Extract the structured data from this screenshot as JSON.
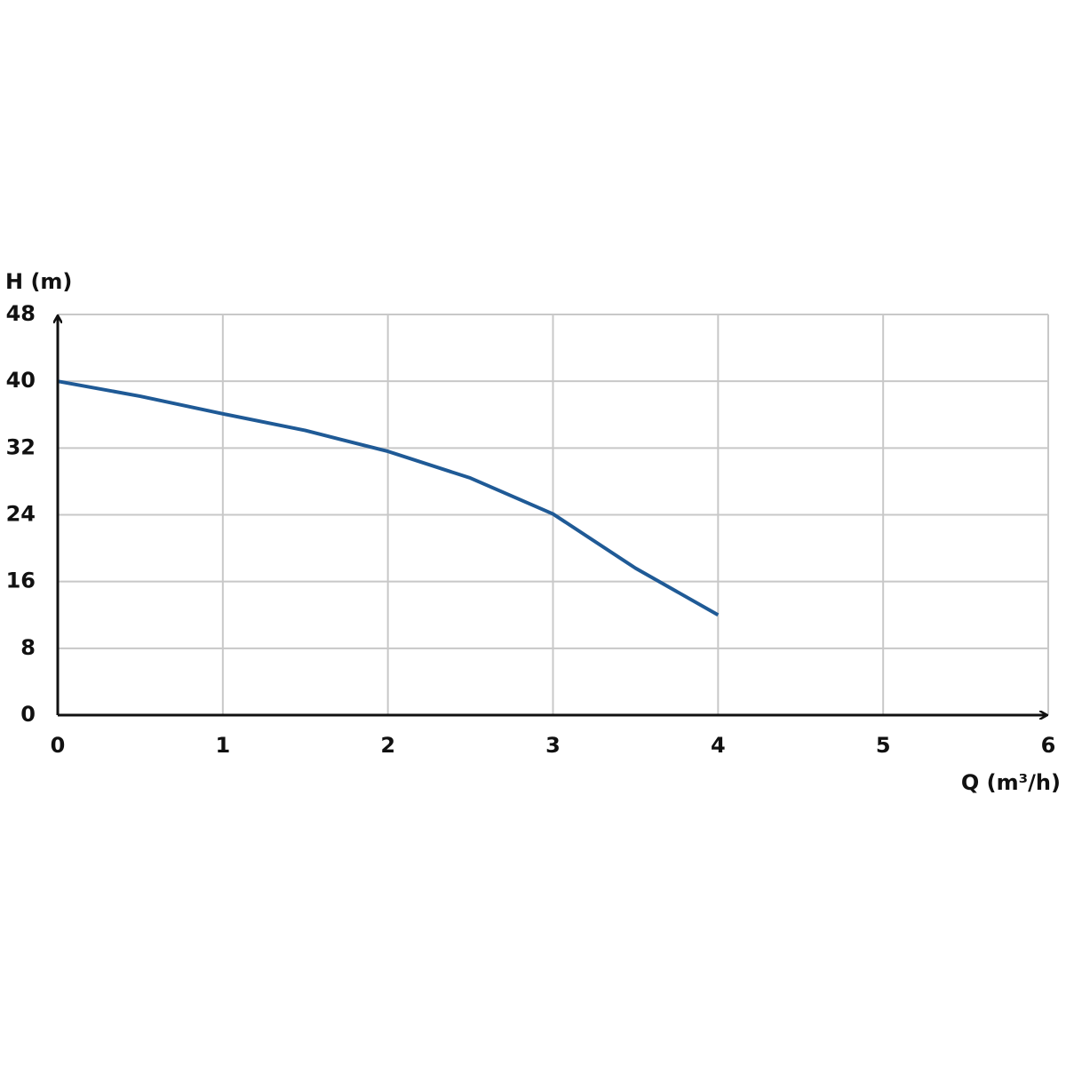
{
  "chart_data": {
    "type": "line",
    "x_label": "Q (m³/h)",
    "y_label": "H (m)",
    "x": [
      0,
      0.5,
      1,
      1.5,
      2,
      2.5,
      3,
      3.5,
      4
    ],
    "series": [
      {
        "color": "#1f5a96",
        "values": [
          40,
          38.2,
          36.1,
          34.1,
          31.6,
          28.4,
          24.1,
          17.6,
          12
        ]
      }
    ],
    "xlim": [
      0,
      6
    ],
    "xticks": [
      0,
      1,
      2,
      3,
      4,
      5,
      6
    ],
    "ylim": [
      0,
      48
    ],
    "yticks": [
      0,
      8,
      16,
      24,
      32,
      40,
      48
    ],
    "grid": true
  }
}
